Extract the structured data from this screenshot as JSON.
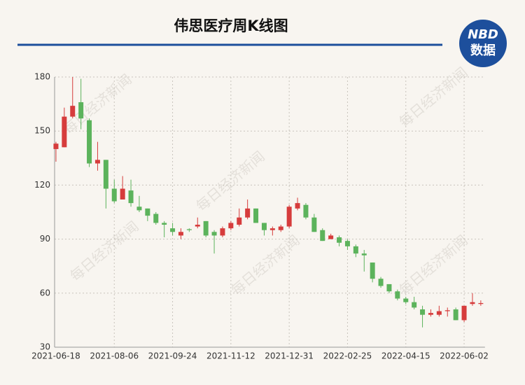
{
  "header": {
    "title": "伟思医疗周K线图",
    "logo_top": "NBD",
    "logo_bottom": "数据"
  },
  "watermark": "每日经济新闻",
  "chart_data": {
    "type": "candlestick",
    "categories": [
      "2021-06-18",
      null,
      null,
      null,
      null,
      null,
      null,
      "2021-08-06",
      null,
      null,
      null,
      null,
      null,
      null,
      "2021-09-24",
      null,
      null,
      null,
      null,
      null,
      null,
      "2021-11-12",
      null,
      null,
      null,
      null,
      null,
      null,
      "2021-12-31",
      null,
      null,
      null,
      null,
      null,
      null,
      "2022-02-25",
      null,
      null,
      null,
      null,
      null,
      null,
      "2022-04-15",
      null,
      null,
      null,
      null,
      null,
      null,
      "2022-06-02",
      null,
      null
    ],
    "open": [
      140,
      141,
      158,
      166,
      156,
      132,
      134,
      118,
      112,
      117,
      108,
      107,
      104,
      99,
      96,
      92,
      95.5,
      97,
      100,
      94,
      92,
      96,
      98,
      102,
      107,
      99,
      95,
      95,
      97,
      107,
      109,
      102,
      95,
      90,
      91,
      89,
      86,
      82,
      77,
      68,
      65,
      61,
      57,
      55,
      51,
      48,
      48,
      50,
      51,
      45,
      54,
      54
    ],
    "high": [
      144,
      163,
      180,
      179,
      157,
      144,
      134,
      123,
      125,
      123,
      114,
      107,
      105,
      100,
      99,
      96,
      96,
      102,
      100,
      95,
      97,
      100,
      107,
      112,
      107,
      99,
      97,
      98,
      109,
      113,
      110,
      104,
      96,
      93,
      92,
      90,
      87,
      84,
      77,
      69,
      65,
      62,
      58,
      58,
      53,
      51,
      53,
      52,
      52,
      53,
      60,
      56
    ],
    "low": [
      133,
      141,
      157,
      151,
      130,
      128,
      107,
      110,
      112,
      108,
      105,
      100,
      98,
      91,
      92,
      90,
      94,
      96,
      91,
      82,
      91,
      95,
      97,
      101,
      99,
      92,
      92,
      94,
      96,
      106,
      101,
      94,
      89,
      90,
      86,
      84,
      80,
      72,
      66,
      63,
      60,
      56,
      54,
      51,
      41,
      47,
      47,
      47,
      45,
      44,
      53,
      53
    ],
    "close": [
      143,
      158,
      164,
      157,
      132,
      134,
      118,
      111,
      118,
      110,
      106,
      103,
      99,
      98,
      94,
      94,
      95,
      98,
      92,
      92,
      96,
      99,
      102,
      107,
      99,
      95,
      96,
      97,
      108,
      110,
      102,
      94,
      89,
      92,
      88,
      86,
      82,
      81,
      68,
      64,
      61,
      57,
      55,
      52,
      48,
      49,
      50,
      50.5,
      45,
      53,
      55,
      54.5
    ],
    "up_color": "#d63c3c",
    "down_color": "#5cb35c",
    "ylim": [
      30,
      180
    ],
    "yticks": [
      30,
      60,
      90,
      120,
      150,
      180
    ],
    "grid": true
  }
}
